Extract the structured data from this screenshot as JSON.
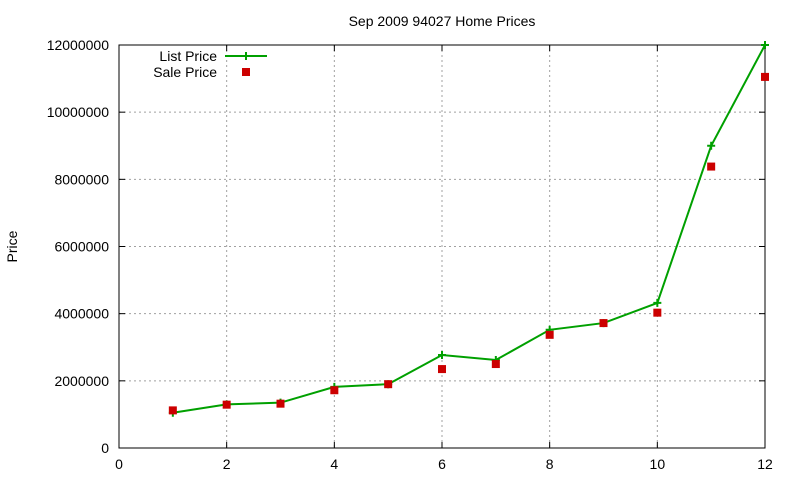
{
  "chart_data": {
    "type": "line",
    "title": "Sep 2009 94027 Home Prices",
    "xlabel": "",
    "ylabel": "Price",
    "xlim": [
      0,
      12
    ],
    "ylim": [
      0,
      12000000
    ],
    "xticks": [
      0,
      2,
      4,
      6,
      8,
      10,
      12
    ],
    "yticks": [
      0,
      2000000,
      4000000,
      6000000,
      8000000,
      10000000,
      12000000
    ],
    "grid": true,
    "legend_position": "top-left",
    "series": [
      {
        "name": "List Price",
        "style": "line-with-plus-markers",
        "color": "#00a000",
        "x": [
          1,
          2,
          3,
          4,
          5,
          6,
          7,
          8,
          9,
          10,
          11,
          12
        ],
        "values": [
          1050000,
          1300000,
          1350000,
          1820000,
          1900000,
          2770000,
          2620000,
          3520000,
          3720000,
          4320000,
          9000000,
          12000000
        ]
      },
      {
        "name": "Sale Price",
        "style": "square-markers",
        "color": "#cc0000",
        "x": [
          1,
          2,
          3,
          4,
          5,
          6,
          7,
          8,
          9,
          10,
          11,
          12
        ],
        "values": [
          1120000,
          1290000,
          1320000,
          1720000,
          1900000,
          2350000,
          2500000,
          3370000,
          3720000,
          4030000,
          8380000,
          11050000
        ]
      }
    ]
  }
}
